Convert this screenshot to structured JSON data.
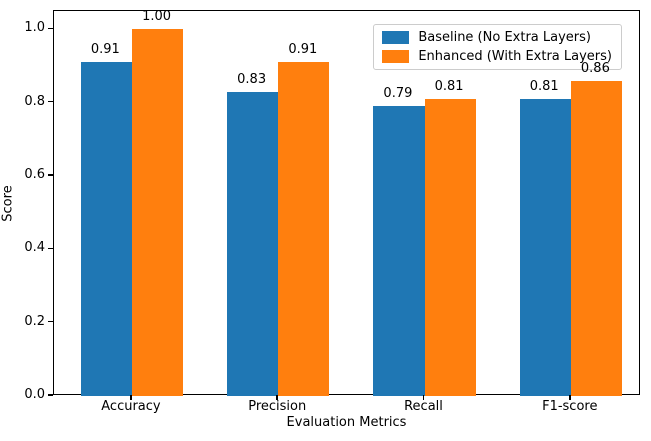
{
  "chart_data": {
    "type": "bar",
    "title": "",
    "xlabel": "Evaluation Metrics",
    "ylabel": "Score",
    "categories": [
      "Accuracy",
      "Precision",
      "Recall",
      "F1-score"
    ],
    "series": [
      {
        "name": "Baseline (No Extra Layers)",
        "color": "#1f77b4",
        "values": [
          0.91,
          0.83,
          0.79,
          0.81
        ]
      },
      {
        "name": "Enhanced (With Extra Layers)",
        "color": "#ff7f0e",
        "values": [
          1.0,
          0.91,
          0.81,
          0.86
        ]
      }
    ],
    "value_labels": [
      [
        "0.91",
        "0.83",
        "0.79",
        "0.81"
      ],
      [
        "1.00",
        "0.91",
        "0.81",
        "0.86"
      ]
    ],
    "yticks": [
      "0.0",
      "0.2",
      "0.4",
      "0.6",
      "0.8",
      "1.0"
    ],
    "ylim": [
      0,
      1.05
    ],
    "bar_width": 0.35,
    "grid": false,
    "legend_position": "upper right"
  }
}
